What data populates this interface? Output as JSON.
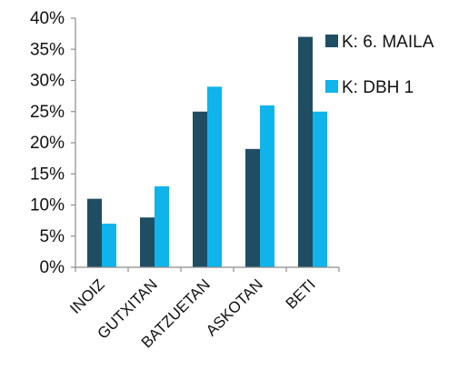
{
  "chart_data": {
    "type": "bar",
    "categories": [
      "INOIZ",
      "GUTXITAN",
      "BATZUETAN",
      "ASKOTAN",
      "BETI"
    ],
    "series": [
      {
        "name": "K: 6. MAILA",
        "values": [
          11,
          8,
          25,
          19,
          37
        ],
        "color": "#1f4e63"
      },
      {
        "name": "K: DBH 1",
        "values": [
          7,
          13,
          29,
          26,
          25
        ],
        "color": "#0fb4ea"
      }
    ],
    "ylim": [
      0,
      40
    ],
    "yticks": [
      "0%",
      "5%",
      "10%",
      "15%",
      "20%",
      "25%",
      "30%",
      "35%",
      "40%"
    ],
    "ytick_values": [
      0,
      5,
      10,
      15,
      20,
      25,
      30,
      35,
      40
    ],
    "grid": false,
    "legend_position": "right"
  }
}
